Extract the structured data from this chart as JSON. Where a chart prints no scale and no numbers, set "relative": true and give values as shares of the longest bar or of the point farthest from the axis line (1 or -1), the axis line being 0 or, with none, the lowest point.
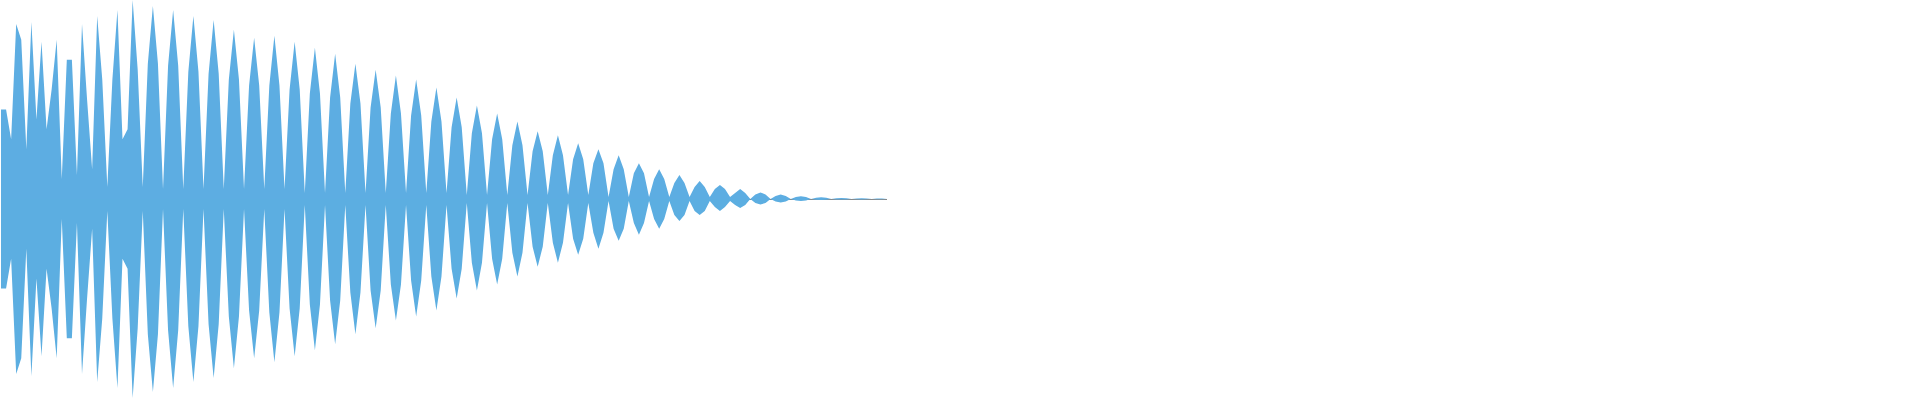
{
  "chart_data": {
    "type": "area",
    "relative": true,
    "categories": [
      null,
      null,
      null,
      null,
      null,
      null,
      null,
      null,
      null,
      null,
      null,
      null,
      null,
      null,
      null,
      null,
      null,
      null,
      null,
      null,
      null,
      null,
      null,
      null,
      null,
      null,
      null,
      null,
      null,
      null,
      null,
      null,
      null,
      null,
      null,
      null,
      null,
      null,
      null,
      null,
      null,
      null,
      null,
      null,
      null,
      null,
      null,
      null,
      null,
      null,
      null,
      null,
      null,
      null,
      null,
      null,
      null,
      null,
      null,
      null,
      null,
      null,
      null,
      null,
      null,
      null,
      null,
      null,
      null,
      null,
      null,
      null,
      null,
      null,
      null,
      null,
      null,
      null,
      null,
      null,
      null,
      null,
      null,
      null,
      null,
      null,
      null,
      null,
      null,
      null,
      null,
      null,
      null,
      null,
      null,
      null,
      null,
      null,
      null,
      null,
      null,
      null,
      null,
      null,
      null,
      null,
      null,
      null,
      null,
      null,
      null,
      null,
      null,
      null,
      null,
      null,
      null,
      null,
      null,
      null,
      null,
      null,
      null,
      null,
      null,
      null,
      null,
      null,
      null,
      null,
      null,
      null,
      null,
      null,
      null,
      null,
      null,
      null,
      null,
      null,
      null,
      null,
      null,
      null,
      null,
      null,
      null,
      null,
      null,
      null,
      null,
      null,
      null,
      null,
      null,
      null,
      null,
      null,
      null,
      null,
      null,
      null,
      null,
      null,
      null,
      null,
      null,
      null,
      null,
      null,
      null,
      null,
      null,
      null,
      null,
      null
    ],
    "series": [
      {
        "color": "#5dade2",
        "values": [
          0.45,
          0.45,
          0.3,
          0.88,
          0.8,
          0.25,
          0.89,
          0.4,
          0.79,
          0.35,
          0.55,
          0.8,
          0.1,
          0.7,
          0.7,
          0.12,
          0.88,
          0.5,
          0.15,
          0.92,
          0.6,
          0.06,
          0.6,
          0.95,
          0.3,
          0.35,
          1,
          0.65,
          0.06,
          0.68,
          0.97,
          0.68,
          0.05,
          0.67,
          0.95,
          0.67,
          0.05,
          0.64,
          0.92,
          0.64,
          0.05,
          0.63,
          0.9,
          0.63,
          0.05,
          0.6,
          0.85,
          0.6,
          0.05,
          0.57,
          0.81,
          0.57,
          0.05,
          0.57,
          0.82,
          0.57,
          0.05,
          0.55,
          0.79,
          0.55,
          0.03,
          0.53,
          0.76,
          0.53,
          0.03,
          0.51,
          0.73,
          0.51,
          0.03,
          0.48,
          0.68,
          0.48,
          0.03,
          0.46,
          0.65,
          0.46,
          0.03,
          0.43,
          0.62,
          0.43,
          0.03,
          0.42,
          0.6,
          0.42,
          0.03,
          0.39,
          0.56,
          0.39,
          0.03,
          0.36,
          0.51,
          0.36,
          0.02,
          0.33,
          0.47,
          0.33,
          0.02,
          0.3,
          0.43,
          0.3,
          0.02,
          0.27,
          0.39,
          0.27,
          0.02,
          0.24,
          0.34,
          0.24,
          0.02,
          0.22,
          0.32,
          0.22,
          0.02,
          0.2,
          0.28,
          0.2,
          0.02,
          0.18,
          0.25,
          0.18,
          0.01,
          0.15,
          0.22,
          0.15,
          0.01,
          0.13,
          0.18,
          0.13,
          0.01,
          0.1,
          0.15,
          0.1,
          0.01,
          0.08,
          0.12,
          0.08,
          0.01,
          0.06,
          0.09,
          0.06,
          0.01,
          0.05,
          0.07,
          0.05,
          0.01,
          0.03,
          0.05,
          0.03,
          0,
          0.023,
          0.033,
          0.023,
          0,
          0.015,
          0.022,
          0.015,
          0,
          0.01,
          0.014,
          0.01,
          0,
          0.006,
          0.009,
          0.006,
          0,
          0.004,
          0.005,
          0.004,
          0,
          0.003,
          0.004,
          0.003,
          0,
          0.002,
          0.003,
          0
        ]
      },
      {
        "color": "#5caee1",
        "values": [
          -0.45,
          -0.45,
          -0.3,
          -0.88,
          -0.8,
          -0.25,
          -0.89,
          -0.4,
          -0.79,
          -0.35,
          -0.55,
          -0.8,
          -0.1,
          -0.7,
          -0.7,
          -0.12,
          -0.88,
          -0.5,
          -0.15,
          -0.92,
          -0.6,
          -0.06,
          -0.6,
          -0.95,
          -0.3,
          -0.35,
          -1,
          -0.65,
          -0.06,
          -0.68,
          -0.97,
          -0.68,
          -0.05,
          -0.66,
          -0.95,
          -0.66,
          -0.05,
          -0.64,
          -0.92,
          -0.64,
          -0.05,
          -0.63,
          -0.9,
          -0.63,
          -0.05,
          -0.59,
          -0.85,
          -0.59,
          -0.05,
          -0.56,
          -0.8,
          -0.56,
          -0.05,
          -0.57,
          -0.82,
          -0.57,
          -0.05,
          -0.55,
          -0.79,
          -0.55,
          -0.03,
          -0.53,
          -0.76,
          -0.53,
          -0.03,
          -0.51,
          -0.73,
          -0.51,
          -0.03,
          -0.47,
          -0.68,
          -0.47,
          -0.03,
          -0.46,
          -0.65,
          -0.46,
          -0.03,
          -0.43,
          -0.61,
          -0.43,
          -0.03,
          -0.41,
          -0.59,
          -0.41,
          -0.03,
          -0.39,
          -0.56,
          -0.39,
          -0.03,
          -0.35,
          -0.5,
          -0.35,
          -0.02,
          -0.32,
          -0.46,
          -0.32,
          -0.02,
          -0.3,
          -0.43,
          -0.3,
          -0.02,
          -0.27,
          -0.39,
          -0.27,
          -0.02,
          -0.24,
          -0.34,
          -0.24,
          -0.02,
          -0.22,
          -0.32,
          -0.22,
          -0.02,
          -0.2,
          -0.28,
          -0.2,
          -0.02,
          -0.17,
          -0.25,
          -0.17,
          -0.01,
          -0.15,
          -0.21,
          -0.15,
          -0.01,
          -0.12,
          -0.18,
          -0.12,
          -0.01,
          -0.1,
          -0.15,
          -0.1,
          -0.01,
          -0.08,
          -0.11,
          -0.08,
          -0.01,
          -0.06,
          -0.08,
          -0.06,
          -0.01,
          -0.04,
          -0.06,
          -0.04,
          -0.01,
          -0.03,
          -0.045,
          -0.03,
          0,
          -0.02,
          -0.028,
          -0.02,
          0,
          -0.013,
          -0.018,
          -0.013,
          0,
          -0.007,
          -0.01,
          -0.007,
          0,
          -0.004,
          -0.005,
          -0.004,
          0,
          -0.002,
          -0.003,
          -0.002,
          0,
          -0.001,
          -0.002,
          -0.001,
          0,
          -0.001,
          -0.001,
          0
        ]
      }
    ]
  }
}
